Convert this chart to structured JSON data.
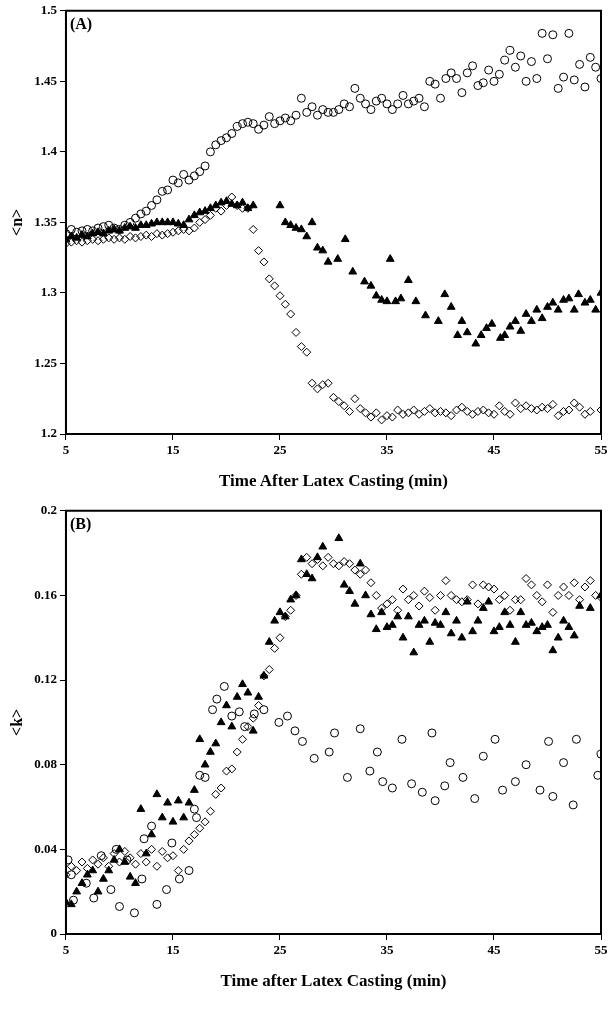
{
  "chart_data": [
    {
      "type": "scatter",
      "xlabel": "Time After Latex Casting (min)",
      "ylabel": "<n>",
      "annotations": [
        "(A)"
      ],
      "xlim": [
        5,
        55
      ],
      "xticks": [
        5,
        15,
        25,
        35,
        45,
        55
      ],
      "ylim": [
        1.2,
        1.5
      ],
      "yticks": [
        1.2,
        1.25,
        1.3,
        1.35,
        1.4,
        1.45,
        1.5
      ],
      "grid": false,
      "legend": false,
      "series": [
        {
          "color": "#000000",
          "marker": "circle",
          "x": [
            5,
            5.5,
            6,
            6.5,
            7,
            7.5,
            8,
            8.5,
            9,
            9.5,
            10,
            10.5,
            11,
            11.5,
            12,
            12.5,
            13,
            13.5,
            14,
            14.5,
            15,
            15.5,
            16,
            16.5,
            17,
            17.5,
            18,
            18.5,
            19,
            19.5,
            20,
            20.5,
            21,
            21.5,
            22,
            22.5,
            23,
            23.5,
            24,
            24.5,
            25,
            25.5,
            26,
            26.5,
            27,
            27.5,
            28,
            28.5,
            29,
            29.5,
            30,
            30.5,
            31,
            31.5,
            32,
            32.5,
            33,
            33.5,
            34,
            34.5,
            35,
            35.5,
            36,
            36.5,
            37,
            37.5,
            38,
            38.5,
            39,
            39.5,
            40,
            40.5,
            41,
            41.5,
            42,
            42.5,
            43,
            43.5,
            44,
            44.5,
            45,
            45.5,
            46,
            46.5,
            47,
            47.5,
            48,
            48.5,
            49,
            49.5,
            50,
            50.5,
            51,
            51.5,
            52,
            52.5,
            53,
            53.5,
            54,
            54.5,
            55
          ],
          "values": [
            1.342,
            1.345,
            1.343,
            1.344,
            1.345,
            1.344,
            1.346,
            1.347,
            1.348,
            1.346,
            1.345,
            1.348,
            1.35,
            1.353,
            1.356,
            1.358,
            1.362,
            1.366,
            1.372,
            1.373,
            1.38,
            1.378,
            1.384,
            1.38,
            1.383,
            1.386,
            1.39,
            1.4,
            1.405,
            1.408,
            1.41,
            1.413,
            1.418,
            1.42,
            1.421,
            1.42,
            1.416,
            1.419,
            1.425,
            1.42,
            1.422,
            1.424,
            1.422,
            1.426,
            1.438,
            1.428,
            1.432,
            1.426,
            1.43,
            1.428,
            1.428,
            1.43,
            1.434,
            1.432,
            1.445,
            1.438,
            1.434,
            1.43,
            1.436,
            1.438,
            1.434,
            1.43,
            1.434,
            1.44,
            1.434,
            1.436,
            1.438,
            1.432,
            1.45,
            1.448,
            1.438,
            1.452,
            1.456,
            1.452,
            1.442,
            1.456,
            1.461,
            1.447,
            1.449,
            1.458,
            1.45,
            1.455,
            1.465,
            1.472,
            1.46,
            1.468,
            1.45,
            1.464,
            1.452,
            1.484,
            1.466,
            1.483,
            1.445,
            1.453,
            1.484,
            1.451,
            1.462,
            1.446,
            1.467,
            1.46,
            1.452
          ]
        },
        {
          "color": "#000000",
          "marker": "triangle",
          "x": [
            5,
            5.5,
            6,
            6.5,
            7,
            7.5,
            8,
            8.5,
            9,
            9.5,
            10,
            10.5,
            11,
            11.5,
            12,
            12.5,
            13,
            13.5,
            14,
            14.5,
            15,
            15.5,
            16,
            16.5,
            17,
            17.5,
            18,
            18.5,
            19,
            19.5,
            20,
            20.5,
            21,
            21.5,
            22,
            22.5,
            25,
            25.5,
            26,
            26.5,
            27,
            27.5,
            28,
            28.5,
            29,
            29.5,
            30.4,
            31.1,
            31.8,
            32.9,
            33.5,
            34,
            34.5,
            35,
            35.3,
            35.8,
            36.3,
            37,
            37.7,
            38.6,
            39.8,
            40.4,
            41,
            41.6,
            42,
            42.5,
            43.3,
            43.8,
            44.3,
            44.8,
            45.6,
            46,
            46.5,
            47,
            47.5,
            48,
            48.5,
            49,
            49.5,
            50,
            50.5,
            51,
            51.5,
            52,
            52.5,
            52.9,
            53.5,
            54,
            54.5,
            55
          ],
          "values": [
            1.338,
            1.34,
            1.339,
            1.341,
            1.34,
            1.342,
            1.343,
            1.342,
            1.344,
            1.345,
            1.344,
            1.346,
            1.347,
            1.346,
            1.348,
            1.348,
            1.349,
            1.35,
            1.35,
            1.35,
            1.35,
            1.349,
            1.348,
            1.352,
            1.355,
            1.357,
            1.358,
            1.36,
            1.362,
            1.364,
            1.365,
            1.363,
            1.362,
            1.364,
            1.36,
            1.362,
            1.362,
            1.35,
            1.348,
            1.346,
            1.345,
            1.34,
            1.35,
            1.332,
            1.33,
            1.322,
            1.324,
            1.338,
            1.315,
            1.308,
            1.305,
            1.298,
            1.295,
            1.294,
            1.324,
            1.294,
            1.296,
            1.309,
            1.294,
            1.284,
            1.28,
            1.299,
            1.29,
            1.27,
            1.28,
            1.272,
            1.264,
            1.27,
            1.275,
            1.278,
            1.268,
            1.27,
            1.276,
            1.28,
            1.273,
            1.285,
            1.28,
            1.288,
            1.282,
            1.29,
            1.293,
            1.288,
            1.295,
            1.296,
            1.288,
            1.299,
            1.293,
            1.295,
            1.288,
            1.3
          ]
        },
        {
          "color": "#000000",
          "marker": "diamond",
          "x": [
            5,
            5.5,
            6,
            6.5,
            7,
            7.5,
            8,
            8.5,
            9,
            9.5,
            10,
            10.5,
            11,
            11.5,
            12,
            12.5,
            13,
            13.5,
            14,
            14.5,
            15,
            15.5,
            16,
            16.5,
            17,
            17.5,
            18,
            18.5,
            19,
            19.5,
            20,
            20.5,
            21,
            21.5,
            22,
            22.5,
            23,
            23.5,
            24,
            24.5,
            25,
            25.5,
            26,
            26.5,
            27,
            27.5,
            28,
            28.5,
            29,
            29.5,
            30,
            30.5,
            31,
            31.5,
            32,
            32.5,
            33,
            33.5,
            34,
            34.5,
            35,
            35.5,
            36,
            36.5,
            37,
            37.5,
            38,
            38.5,
            39,
            39.5,
            40,
            40.5,
            41,
            41.5,
            42,
            42.5,
            43,
            43.5,
            44,
            44.5,
            45,
            45.5,
            46,
            46.5,
            47,
            47.5,
            48,
            48.5,
            49,
            49.5,
            50,
            50.5,
            51,
            51.5,
            52,
            52.5,
            53,
            53.5,
            54,
            55
          ],
          "values": [
            1.335,
            1.336,
            1.337,
            1.336,
            1.337,
            1.338,
            1.337,
            1.338,
            1.339,
            1.338,
            1.339,
            1.338,
            1.34,
            1.339,
            1.34,
            1.341,
            1.34,
            1.342,
            1.341,
            1.342,
            1.343,
            1.344,
            1.345,
            1.344,
            1.346,
            1.35,
            1.352,
            1.355,
            1.36,
            1.358,
            1.362,
            1.368,
            1.362,
            1.36,
            1.36,
            1.345,
            1.33,
            1.322,
            1.31,
            1.305,
            1.298,
            1.292,
            1.285,
            1.272,
            1.262,
            1.258,
            1.236,
            1.232,
            1.235,
            1.236,
            1.226,
            1.223,
            1.22,
            1.216,
            1.225,
            1.218,
            1.215,
            1.212,
            1.215,
            1.21,
            1.213,
            1.212,
            1.217,
            1.214,
            1.215,
            1.217,
            1.214,
            1.216,
            1.218,
            1.215,
            1.216,
            1.215,
            1.213,
            1.217,
            1.219,
            1.216,
            1.214,
            1.216,
            1.217,
            1.215,
            1.214,
            1.22,
            1.216,
            1.214,
            1.222,
            1.218,
            1.22,
            1.218,
            1.217,
            1.219,
            1.218,
            1.221,
            1.213,
            1.216,
            1.217,
            1.222,
            1.219,
            1.214,
            1.216,
            1.217
          ]
        }
      ]
    },
    {
      "type": "scatter",
      "xlabel": "Time after Latex Casting (min)",
      "ylabel": "<k>",
      "annotations": [
        "(B)"
      ],
      "xlim": [
        5,
        55
      ],
      "xticks": [
        5,
        15,
        25,
        35,
        45,
        55
      ],
      "ylim": [
        0,
        0.2
      ],
      "yticks": [
        0,
        0.04,
        0.08,
        0.12,
        0.16,
        0.2
      ],
      "grid": false,
      "legend": false,
      "series": [
        {
          "color": "#000000",
          "marker": "circle",
          "x": [
            5.2,
            5.5,
            5.7,
            6.9,
            7.6,
            8.3,
            9.2,
            9.7,
            10,
            10.7,
            11.4,
            12.1,
            12.3,
            13,
            13.5,
            14.4,
            14.9,
            15.6,
            16.5,
            17,
            17.2,
            17.5,
            18,
            18.7,
            19.1,
            19.8,
            20.5,
            21.2,
            21.7,
            22.6,
            23.5,
            24.9,
            25.7,
            26.4,
            27.1,
            28.2,
            29.6,
            30.1,
            31.3,
            32.5,
            33.4,
            34.1,
            34.6,
            35.5,
            36.4,
            37.3,
            38.3,
            39.2,
            39.5,
            40.4,
            40.9,
            42.1,
            43.2,
            44,
            45.1,
            45.8,
            47,
            48,
            49.3,
            50.1,
            50.5,
            51.5,
            52.4,
            52.7,
            54.7,
            55
          ],
          "values": [
            0.035,
            0.028,
            0.016,
            0.024,
            0.017,
            0.037,
            0.021,
            0.04,
            0.013,
            0.035,
            0.01,
            0.026,
            0.045,
            0.051,
            0.014,
            0.021,
            0.043,
            0.026,
            0.03,
            0.059,
            0.055,
            0.075,
            0.074,
            0.106,
            0.111,
            0.117,
            0.103,
            0.105,
            0.098,
            0.104,
            0.106,
            0.1,
            0.103,
            0.096,
            0.091,
            0.083,
            0.086,
            0.095,
            0.074,
            0.097,
            0.077,
            0.086,
            0.072,
            0.069,
            0.092,
            0.071,
            0.067,
            0.095,
            0.063,
            0.07,
            0.081,
            0.074,
            0.064,
            0.084,
            0.092,
            0.068,
            0.072,
            0.08,
            0.068,
            0.091,
            0.065,
            0.081,
            0.061,
            0.092,
            0.075,
            0.085
          ]
        },
        {
          "color": "#000000",
          "marker": "triangle",
          "x": [
            5,
            5.5,
            6,
            6.5,
            7,
            7.5,
            8,
            8.5,
            9,
            9.5,
            10,
            10.5,
            11,
            11.5,
            12,
            12.5,
            13,
            13.5,
            14,
            14.5,
            15,
            15.5,
            16,
            16.5,
            17,
            17.5,
            18,
            18.5,
            19,
            19.5,
            20,
            20.5,
            21,
            21.5,
            22,
            22.5,
            23,
            23.5,
            24,
            24.5,
            25,
            25.5,
            26,
            26.5,
            27,
            27.5,
            28,
            28.5,
            29,
            30.5,
            31,
            31.5,
            32,
            32.5,
            33,
            33.5,
            34,
            34.5,
            35,
            35.5,
            36,
            36.5,
            37,
            37.5,
            38,
            38.5,
            39,
            39.5,
            40,
            40.5,
            41,
            41.5,
            42,
            42.5,
            43,
            43.5,
            44,
            44.5,
            45,
            45.5,
            46,
            46.5,
            47,
            47.5,
            48,
            48.5,
            49,
            49.5,
            50,
            50.5,
            51,
            51.5,
            52,
            52.5,
            53,
            54,
            55
          ],
          "values": [
            0.015,
            0.014,
            0.02,
            0.024,
            0.028,
            0.03,
            0.02,
            0.026,
            0.03,
            0.035,
            0.04,
            0.034,
            0.027,
            0.024,
            0.059,
            0.038,
            0.047,
            0.066,
            0.055,
            0.062,
            0.053,
            0.063,
            0.055,
            0.062,
            0.068,
            0.092,
            0.08,
            0.086,
            0.09,
            0.1,
            0.108,
            0.098,
            0.112,
            0.118,
            0.114,
            0.096,
            0.112,
            0.122,
            0.138,
            0.148,
            0.152,
            0.15,
            0.158,
            0.16,
            0.177,
            0.17,
            0.168,
            0.178,
            0.183,
            0.187,
            0.165,
            0.162,
            0.156,
            0.175,
            0.16,
            0.151,
            0.144,
            0.152,
            0.145,
            0.146,
            0.15,
            0.14,
            0.15,
            0.133,
            0.146,
            0.148,
            0.138,
            0.147,
            0.146,
            0.152,
            0.142,
            0.148,
            0.14,
            0.157,
            0.143,
            0.148,
            0.154,
            0.157,
            0.143,
            0.145,
            0.152,
            0.146,
            0.138,
            0.152,
            0.146,
            0.147,
            0.143,
            0.145,
            0.146,
            0.134,
            0.14,
            0.148,
            0.145,
            0.141,
            0.155,
            0.154,
            0.16
          ]
        },
        {
          "color": "#000000",
          "marker": "diamond",
          "x": [
            5,
            5.5,
            6,
            6.5,
            7,
            7.5,
            8,
            8.5,
            9,
            9.5,
            10,
            10.5,
            11,
            11.5,
            12,
            12.5,
            13,
            13.5,
            14,
            14.5,
            15,
            15.5,
            16,
            16.5,
            17,
            17.5,
            18,
            18.5,
            19,
            19.5,
            20,
            20.5,
            21,
            21.5,
            22,
            22.5,
            23,
            23.5,
            24,
            24.5,
            25,
            25.5,
            26,
            26.5,
            27,
            27.5,
            28,
            28.5,
            29,
            29.5,
            30,
            30.5,
            31,
            31.5,
            32,
            32.5,
            33,
            33.5,
            34,
            34.5,
            35,
            35.5,
            36,
            36.5,
            37,
            37.5,
            38,
            38.5,
            39,
            39.5,
            40,
            40.5,
            41,
            41.5,
            42,
            42.5,
            43,
            43.5,
            44,
            44.5,
            45,
            45.5,
            46,
            46.5,
            47,
            47.5,
            48,
            48.5,
            49,
            49.5,
            50,
            50.5,
            51,
            51.5,
            52,
            52.5,
            53,
            53.5,
            54,
            54.5,
            55
          ],
          "values": [
            0.028,
            0.032,
            0.03,
            0.034,
            0.031,
            0.035,
            0.033,
            0.036,
            0.032,
            0.038,
            0.034,
            0.039,
            0.036,
            0.033,
            0.038,
            0.034,
            0.04,
            0.032,
            0.039,
            0.036,
            0.037,
            0.03,
            0.04,
            0.044,
            0.047,
            0.05,
            0.053,
            0.058,
            0.066,
            0.069,
            0.077,
            0.078,
            0.086,
            0.092,
            0.098,
            0.102,
            0.108,
            0.122,
            0.125,
            0.135,
            0.14,
            0.15,
            0.153,
            0.16,
            0.17,
            0.178,
            0.175,
            0.177,
            0.174,
            0.178,
            0.175,
            0.174,
            0.176,
            0.175,
            0.172,
            0.17,
            0.172,
            0.166,
            0.16,
            0.154,
            0.156,
            0.158,
            0.153,
            0.163,
            0.158,
            0.16,
            0.155,
            0.162,
            0.159,
            0.153,
            0.16,
            0.167,
            0.16,
            0.158,
            0.157,
            0.158,
            0.165,
            0.156,
            0.165,
            0.164,
            0.163,
            0.158,
            0.16,
            0.153,
            0.158,
            0.158,
            0.168,
            0.165,
            0.16,
            0.157,
            0.165,
            0.152,
            0.16,
            0.164,
            0.16,
            0.166,
            0.158,
            0.164,
            0.167,
            0.16,
            0.159
          ]
        }
      ]
    }
  ]
}
